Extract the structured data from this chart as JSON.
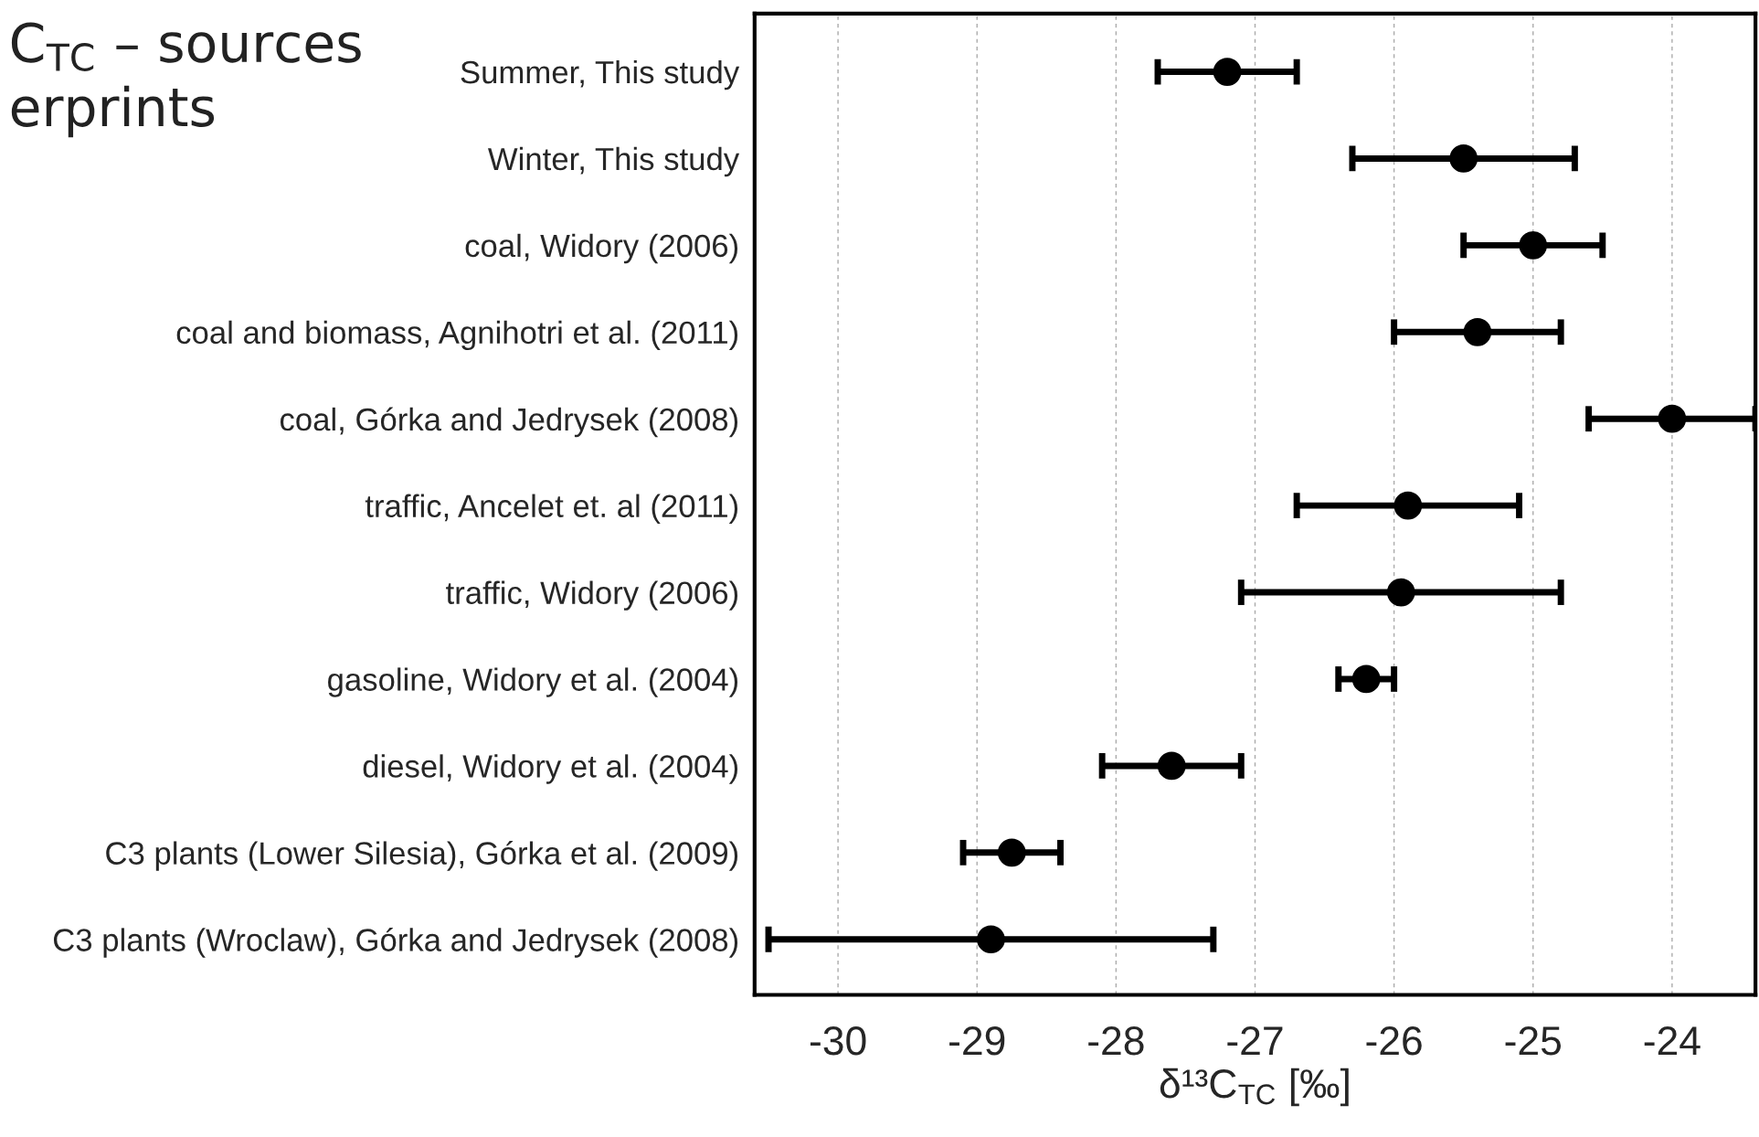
{
  "chart_data": {
    "type": "scatter",
    "orientation": "horizontal",
    "title": "C$_{TC}$ – sources\nerprints",
    "xlabel": "δ¹³C$_{TC}$ [‰]",
    "categories": [
      "Summer, This study",
      "Winter, This study",
      "coal, Widory (2006)",
      "coal and biomass, Agnihotri et al. (2011)",
      "coal, Górka and Jedrysek (2008)",
      "traffic, Ancelet et. al (2011)",
      "traffic, Widory (2006)",
      "gasoline, Widory et al. (2004)",
      "diesel, Widory et al. (2004)",
      "C3 plants (Lower Silesia), Górka et al. (2009)",
      "C3 plants (Wroclaw), Górka and Jedrysek (2008)"
    ],
    "values": [
      -27.2,
      -25.5,
      -25.0,
      -25.4,
      -24.0,
      -25.9,
      -25.95,
      -26.2,
      -27.6,
      -28.75,
      -28.9
    ],
    "errors": [
      0.5,
      0.8,
      0.5,
      0.6,
      0.6,
      0.8,
      1.15,
      0.2,
      0.5,
      0.35,
      1.6
    ],
    "color": "#000000",
    "marker": "circle",
    "xlim": [
      -30.6,
      -23.4
    ],
    "xticks": [
      -30,
      -29,
      -28,
      -27,
      -26,
      -25,
      -24
    ],
    "grid": "x"
  }
}
